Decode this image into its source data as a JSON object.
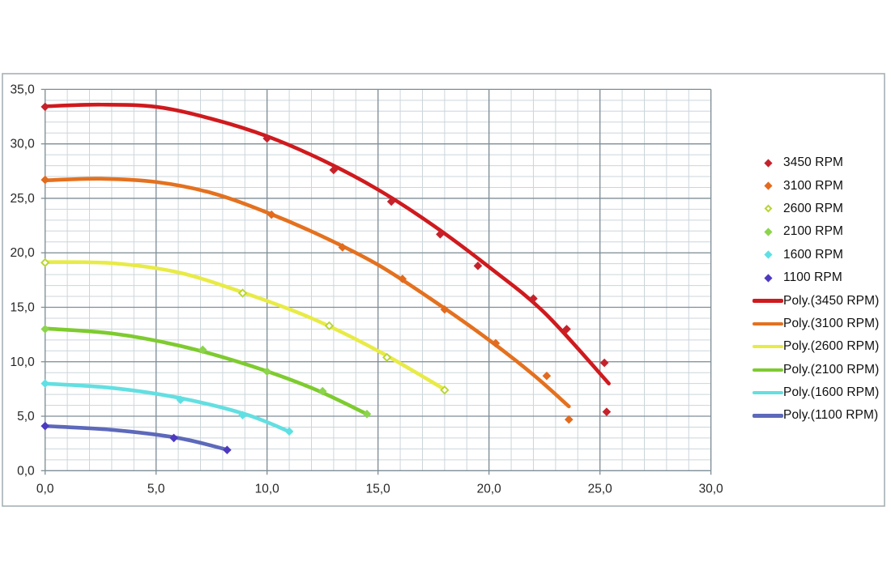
{
  "page": {
    "background": "#ffffff"
  },
  "chart_style": {
    "frame_border_color": "#a7b0b5",
    "plot_background": "#ffffff",
    "major_grid_color": "#7f8d96",
    "minor_grid_color": "#ccd5da",
    "tick_label_color": "#262626",
    "legend_text_color": "#0f0f0f"
  },
  "chart_data": {
    "type": "scatter",
    "title": "",
    "xlabel": "",
    "ylabel": "",
    "xlim": [
      0,
      30
    ],
    "ylim": [
      0,
      35
    ],
    "grid": true,
    "minor_step_x": 1,
    "minor_step_y": 1,
    "number_format": "decimal-comma",
    "legend_position": "right",
    "x_ticks": {
      "values": [
        0,
        5,
        10,
        15,
        20,
        25,
        30
      ],
      "labels": [
        "0,0",
        "5,0",
        "10,0",
        "15,0",
        "20,0",
        "25,0",
        "30,0"
      ]
    },
    "y_ticks": {
      "values": [
        0,
        5,
        10,
        15,
        20,
        25,
        30,
        35
      ],
      "labels": [
        "0,0",
        "5,0",
        "10,0",
        "15,0",
        "20,0",
        "25,0",
        "30,0",
        "35,0"
      ]
    },
    "series": [
      {
        "name": "3450 RPM",
        "trend_label": "Poly.(3450 RPM)",
        "marker_color": "#c5232c",
        "line_color": "#cf1a1e",
        "marker_style": "filled",
        "points": [
          [
            0,
            33.4
          ],
          [
            10,
            30.5
          ],
          [
            13,
            27.6
          ],
          [
            15.6,
            24.7
          ],
          [
            17.8,
            21.7
          ],
          [
            19.5,
            18.8
          ],
          [
            22,
            15.8
          ],
          [
            23.5,
            13.0
          ],
          [
            25.2,
            9.9
          ],
          [
            25.3,
            5.4
          ]
        ],
        "trend": [
          [
            0,
            33.45
          ],
          [
            2.5,
            33.6
          ],
          [
            5,
            33.4
          ],
          [
            7.5,
            32.3
          ],
          [
            10,
            30.7
          ],
          [
            12.5,
            28.5
          ],
          [
            15,
            25.8
          ],
          [
            17.5,
            22.5
          ],
          [
            20,
            18.7
          ],
          [
            22.5,
            14.5
          ],
          [
            25.4,
            8.0
          ]
        ]
      },
      {
        "name": "3100 RPM",
        "trend_label": "Poly.(3100 RPM)",
        "marker_color": "#e26b1e",
        "line_color": "#e4711f",
        "marker_style": "filled",
        "points": [
          [
            0,
            26.7
          ],
          [
            10.2,
            23.5
          ],
          [
            13.4,
            20.5
          ],
          [
            16.1,
            17.6
          ],
          [
            18,
            14.8
          ],
          [
            20.3,
            11.7
          ],
          [
            22.6,
            8.7
          ],
          [
            23.6,
            4.7
          ]
        ],
        "trend": [
          [
            0,
            26.65
          ],
          [
            2.5,
            26.8
          ],
          [
            5,
            26.5
          ],
          [
            7.5,
            25.5
          ],
          [
            10,
            23.7
          ],
          [
            12.5,
            21.5
          ],
          [
            15,
            18.9
          ],
          [
            17.5,
            15.6
          ],
          [
            20,
            12.0
          ],
          [
            22,
            8.8
          ],
          [
            23.6,
            5.9
          ]
        ]
      },
      {
        "name": "2600 RPM",
        "trend_label": "Poly.(2600 RPM)",
        "marker_color": "#b8d533",
        "line_color": "#e8eb46",
        "marker_style": "open",
        "points": [
          [
            0,
            19.1
          ],
          [
            8.9,
            16.3
          ],
          [
            12.8,
            13.3
          ],
          [
            15.4,
            10.4
          ],
          [
            18,
            7.4
          ]
        ],
        "trend": [
          [
            0,
            19.15
          ],
          [
            3,
            19.05
          ],
          [
            6,
            18.2
          ],
          [
            9,
            16.3
          ],
          [
            12,
            14.0
          ],
          [
            15,
            11.0
          ],
          [
            18.05,
            7.4
          ]
        ]
      },
      {
        "name": "2100 RPM",
        "trend_label": "Poly.(2100 RPM)",
        "marker_color": "#8cd44d",
        "line_color": "#7ecb2f",
        "marker_style": "filled",
        "points": [
          [
            0,
            13.0
          ],
          [
            7.1,
            11.1
          ],
          [
            10,
            9.1
          ],
          [
            12.5,
            7.3
          ],
          [
            14.5,
            5.2
          ]
        ],
        "trend": [
          [
            0,
            13.05
          ],
          [
            3,
            12.6
          ],
          [
            6,
            11.5
          ],
          [
            9,
            9.8
          ],
          [
            12,
            7.6
          ],
          [
            14.5,
            5.2
          ]
        ]
      },
      {
        "name": "1600 RPM",
        "trend_label": "Poly.(1600 RPM)",
        "marker_color": "#5fe0e4",
        "line_color": "#63dfe1",
        "marker_style": "filled",
        "points": [
          [
            0,
            8.0
          ],
          [
            6.1,
            6.5
          ],
          [
            8.9,
            5.1
          ],
          [
            11,
            3.6
          ]
        ],
        "trend": [
          [
            0,
            8.0
          ],
          [
            3,
            7.6
          ],
          [
            6,
            6.7
          ],
          [
            9,
            5.2
          ],
          [
            11.05,
            3.55
          ]
        ]
      },
      {
        "name": "1100 RPM",
        "trend_label": "Poly.(1100 RPM)",
        "marker_color": "#4d3ac1",
        "line_color": "#5d69ba",
        "marker_style": "filled",
        "points": [
          [
            0,
            4.1
          ],
          [
            5.8,
            3.0
          ],
          [
            8.2,
            1.9
          ]
        ],
        "trend": [
          [
            0,
            4.1
          ],
          [
            3,
            3.75
          ],
          [
            6,
            3.0
          ],
          [
            8.25,
            1.9
          ]
        ]
      }
    ]
  }
}
